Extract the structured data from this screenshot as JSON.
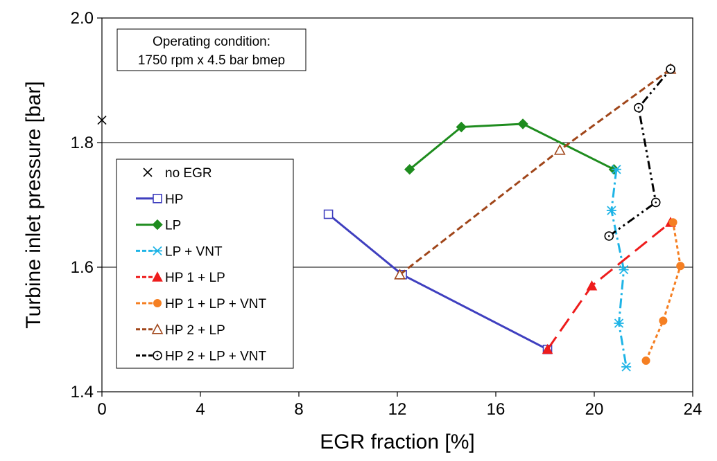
{
  "chart_data": {
    "type": "line",
    "title": "",
    "xlabel": "EGR fraction [%]",
    "ylabel": "Turbine inlet pressure [bar]",
    "xlim": [
      0,
      24
    ],
    "ylim": [
      1.4,
      2.0
    ],
    "xticks": [
      0,
      4,
      8,
      12,
      16,
      20,
      24
    ],
    "yticks": [
      1.4,
      1.6,
      1.8,
      2.0
    ],
    "xtick_labels": [
      "0",
      "4",
      "8",
      "12",
      "16",
      "20",
      "24"
    ],
    "ytick_labels": [
      "1.4",
      "1.6",
      "1.8",
      "2.0"
    ],
    "grid": "horizontal",
    "legend_position": "left",
    "annotation": {
      "line1": "Operating condition:",
      "line2": "1750 rpm x 4.5 bar bmep"
    },
    "series": [
      {
        "name": "no EGR",
        "color": "#000000",
        "marker": "x",
        "line": "none",
        "points": [
          [
            0.0,
            1.836
          ]
        ]
      },
      {
        "name": "HP",
        "color": "#3f3fbf",
        "marker": "square-open",
        "line": "solid",
        "points": [
          [
            9.2,
            1.685
          ],
          [
            12.2,
            1.588
          ],
          [
            18.1,
            1.468
          ]
        ]
      },
      {
        "name": "LP",
        "color": "#1e8c1e",
        "marker": "diamond",
        "line": "solid",
        "points": [
          [
            12.5,
            1.757
          ],
          [
            14.6,
            1.825
          ],
          [
            17.1,
            1.83
          ],
          [
            20.8,
            1.757
          ]
        ]
      },
      {
        "name": "LP + VNT",
        "color": "#1fb4e6",
        "marker": "asterisk",
        "line": "dashdot",
        "points": [
          [
            20.9,
            1.757
          ],
          [
            20.7,
            1.691
          ],
          [
            21.2,
            1.596
          ],
          [
            21.0,
            1.51
          ],
          [
            21.3,
            1.44
          ]
        ]
      },
      {
        "name": "HP 1 + LP",
        "color": "#ee1c1c",
        "marker": "triangle",
        "line": "longdash",
        "points": [
          [
            18.1,
            1.468
          ],
          [
            19.9,
            1.57
          ],
          [
            23.1,
            1.672
          ]
        ]
      },
      {
        "name": "HP 1 + LP + VNT",
        "color": "#f57f22",
        "marker": "circle",
        "line": "dotted",
        "points": [
          [
            22.1,
            1.45
          ],
          [
            22.8,
            1.514
          ],
          [
            23.5,
            1.602
          ],
          [
            23.2,
            1.672
          ]
        ]
      },
      {
        "name": "HP 2 + LP",
        "color": "#a0461a",
        "marker": "triangle-open",
        "line": "dashed",
        "points": [
          [
            12.1,
            1.588
          ],
          [
            18.6,
            1.788
          ],
          [
            23.1,
            1.918
          ]
        ]
      },
      {
        "name": "HP 2 + LP + VNT",
        "color": "#000000",
        "marker": "circle-dot",
        "line": "dashdotdot",
        "points": [
          [
            20.6,
            1.65
          ],
          [
            22.5,
            1.704
          ],
          [
            21.8,
            1.856
          ],
          [
            23.1,
            1.918
          ]
        ]
      }
    ]
  }
}
